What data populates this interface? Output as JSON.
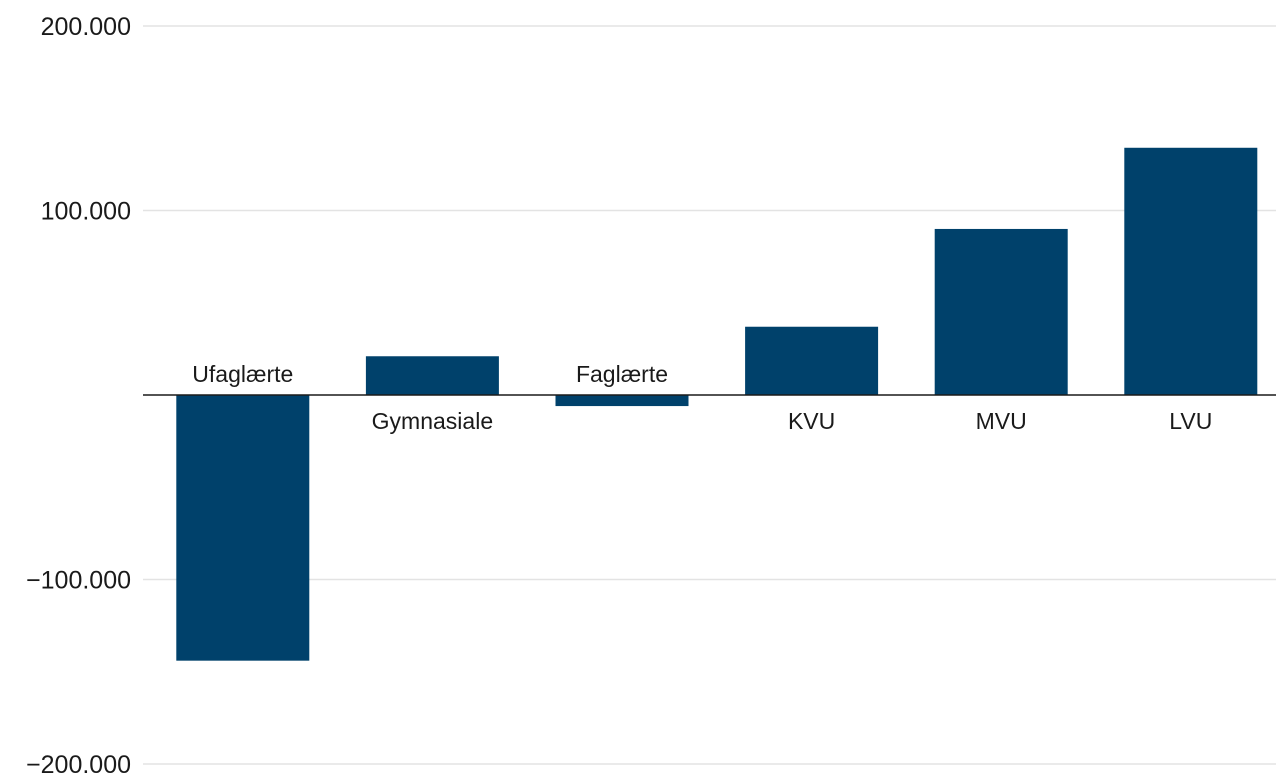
{
  "chart_data": {
    "type": "bar",
    "categories": [
      "Ufaglærte",
      "Gymnasiale",
      "Faglærte",
      "KVU",
      "MVU",
      "LVU"
    ],
    "values": [
      -144000,
      21000,
      -6000,
      37000,
      90000,
      134000
    ],
    "yticks": [
      {
        "value": 200000,
        "label": "200.000"
      },
      {
        "value": 100000,
        "label": "100.000"
      },
      {
        "value": -100000,
        "label": "−100.000"
      },
      {
        "value": -200000,
        "label": "−200.000"
      }
    ],
    "ylim": [
      -200000,
      200000
    ],
    "title": "",
    "xlabel": "",
    "ylabel": "",
    "grid": true,
    "bar_color": "#00416b"
  }
}
